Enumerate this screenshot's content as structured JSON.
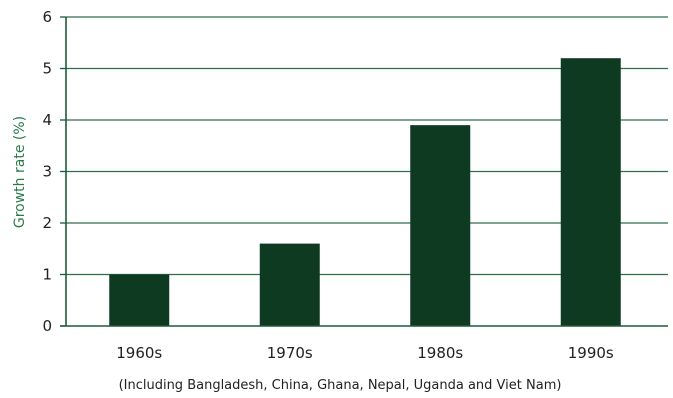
{
  "chart_data": {
    "type": "bar",
    "title": "",
    "xlabel": "",
    "ylabel": "Growth rate (%)",
    "categories": [
      "1960s",
      "1970s",
      "1980s",
      "1990s"
    ],
    "values": [
      1.0,
      1.6,
      3.9,
      5.2
    ],
    "ylim": [
      0,
      6
    ],
    "yticks": [
      "0",
      "1",
      "2",
      "3",
      "4",
      "5",
      "6"
    ],
    "grid": "horizontal",
    "footnote": "(Including Bangladesh, China, Ghana, Nepal, Uganda and Viet Nam)",
    "colors": {
      "bar": "#0f3a22",
      "grid": "#2e6e4a",
      "axis": "#1e5a38"
    }
  }
}
